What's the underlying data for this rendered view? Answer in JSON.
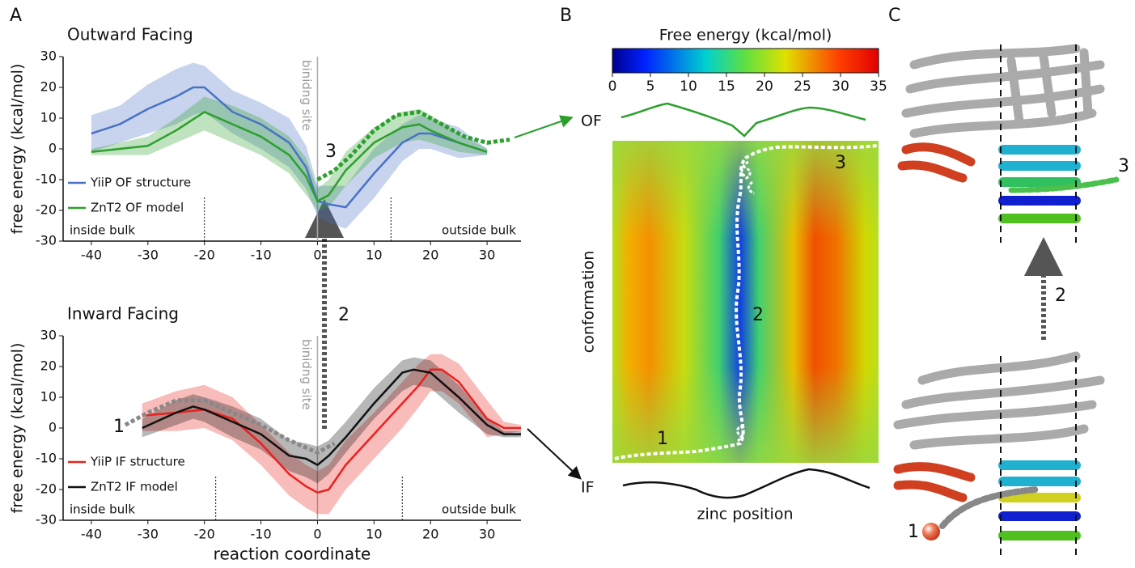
{
  "panel_labels": [
    "A",
    "B",
    "C"
  ],
  "chart_data": [
    {
      "type": "line",
      "title": "Outward Facing",
      "y_label": "free energy (kcal/mol)",
      "xlim": [
        -45,
        36
      ],
      "ylim": [
        -30,
        30
      ],
      "xticks": [
        -40,
        -30,
        -20,
        -10,
        0,
        10,
        20,
        30
      ],
      "yticks": [
        -30,
        -20,
        -10,
        0,
        10,
        20,
        30
      ],
      "legend": "lower left",
      "site_label": "binidng site",
      "inside_label": "inside bulk",
      "outside_label": "outside bulk",
      "markers": [
        -20,
        13
      ],
      "annotations": [
        "3"
      ],
      "series": [
        {
          "name": "YiiP OF structure",
          "color": "#4a72c4",
          "x": [
            -40,
            -35,
            -30,
            -25,
            -22,
            -20,
            -15,
            -10,
            -5,
            -2,
            0,
            2,
            5,
            10,
            15,
            18,
            20,
            25,
            30
          ],
          "values": [
            5,
            8,
            13,
            17,
            20,
            20,
            12,
            8,
            2,
            -6,
            -17,
            -18,
            -19,
            -8,
            2,
            5,
            5,
            2,
            -1
          ],
          "lower": [
            -1,
            2,
            5,
            8,
            11,
            12,
            5,
            0,
            -6,
            -13,
            -22,
            -24,
            -26,
            -16,
            -4,
            0,
            0,
            -3,
            -2
          ],
          "upper": [
            11,
            14,
            21,
            26,
            28,
            27,
            19,
            15,
            10,
            1,
            -12,
            -12,
            -12,
            0,
            8,
            11,
            10,
            7,
            0
          ]
        },
        {
          "name": "ZnT2 OF model",
          "color": "#2ca02c",
          "x": [
            -40,
            -35,
            -30,
            -25,
            -20,
            -15,
            -10,
            -5,
            -2,
            0,
            2,
            5,
            10,
            15,
            18,
            20,
            25,
            30
          ],
          "values": [
            -1,
            0,
            1,
            6,
            12,
            8,
            4,
            -2,
            -9,
            -17,
            -15,
            -7,
            2,
            7,
            8,
            6,
            2,
            -1
          ],
          "lower": [
            -2,
            -2,
            -2,
            2,
            6,
            2,
            -2,
            -8,
            -15,
            -20,
            -19,
            -12,
            -3,
            2,
            3,
            2,
            -1,
            -2
          ],
          "upper": [
            0,
            2,
            4,
            10,
            17,
            14,
            10,
            4,
            -3,
            -13,
            -10,
            -1,
            7,
            12,
            13,
            11,
            5,
            0
          ]
        },
        {
          "color": "#2ca02c",
          "dash": true,
          "x": [
            0,
            3,
            6,
            10,
            14,
            18,
            22,
            26,
            30,
            34
          ],
          "values": [
            -10,
            -7,
            -2,
            6,
            11,
            12,
            8,
            4,
            2,
            3
          ]
        }
      ]
    },
    {
      "type": "line",
      "title": "Inward Facing",
      "y_label": "free energy (kcal/mol)",
      "x_label": "reaction coordinate",
      "xlim": [
        -45,
        36
      ],
      "ylim": [
        -30,
        30
      ],
      "xticks": [
        -40,
        -30,
        -20,
        -10,
        0,
        10,
        20,
        30
      ],
      "yticks": [
        -30,
        -20,
        -10,
        0,
        10,
        20,
        30
      ],
      "legend": "lower left",
      "site_label": "binidng site",
      "inside_label": "inside bulk",
      "outside_label": "outside bulk",
      "markers": [
        -18,
        15
      ],
      "annotations": [
        "1",
        "2"
      ],
      "series": [
        {
          "name": "YiiP IF structure",
          "color": "#e8221e",
          "x": [
            -31,
            -25,
            -20,
            -15,
            -10,
            -5,
            -2,
            0,
            2,
            5,
            10,
            15,
            18,
            20,
            22,
            25,
            30,
            33,
            36
          ],
          "values": [
            4,
            5,
            6,
            3,
            -5,
            -15,
            -19,
            -21,
            -20,
            -12,
            -2,
            8,
            14,
            19,
            19,
            15,
            3,
            0,
            0
          ],
          "lower": [
            -1,
            -1,
            0,
            -4,
            -12,
            -22,
            -26,
            -28,
            -28,
            -20,
            -10,
            0,
            7,
            12,
            12,
            8,
            -3,
            -2,
            -1
          ],
          "upper": [
            8,
            12,
            14,
            10,
            1,
            -8,
            -12,
            -14,
            -12,
            -4,
            5,
            15,
            21,
            24,
            24,
            21,
            9,
            2,
            1
          ]
        },
        {
          "name": "ZnT2 IF model",
          "color": "#111111",
          "x": [
            -31,
            -25,
            -22,
            -20,
            -15,
            -10,
            -5,
            -2,
            0,
            2,
            5,
            10,
            15,
            17,
            20,
            25,
            30,
            33,
            36
          ],
          "values": [
            0,
            5,
            7,
            6,
            2,
            -2,
            -9,
            -10,
            -12,
            -9,
            -3,
            8,
            18,
            19,
            18,
            10,
            1,
            -2,
            -2
          ],
          "lower": [
            -3,
            1,
            3,
            2,
            -3,
            -7,
            -14,
            -16,
            -18,
            -15,
            -8,
            3,
            12,
            14,
            13,
            5,
            -2,
            -3,
            -3
          ],
          "upper": [
            3,
            9,
            11,
            10,
            7,
            3,
            -4,
            -5,
            -6,
            -4,
            2,
            13,
            22,
            23,
            22,
            14,
            3,
            -1,
            -1
          ]
        },
        {
          "color": "#888888",
          "dash": true,
          "x": [
            -34,
            -30,
            -25,
            -20,
            -15,
            -10,
            -5,
            0,
            3
          ],
          "values": [
            1,
            5,
            9,
            9,
            5,
            1,
            -4,
            -8,
            -5
          ]
        }
      ]
    },
    {
      "type": "colorbar",
      "title": "Free energy (kcal/mol)",
      "xlim": [
        0,
        35
      ],
      "xticks": [
        0,
        5,
        10,
        15,
        20,
        25,
        30,
        35
      ]
    }
  ],
  "heatmap": {
    "top_label": "OF",
    "bottom_label": "IF",
    "y_label": "conformation",
    "x_label": "zinc position",
    "path_labels": [
      "1",
      "2",
      "3"
    ]
  },
  "structures": {
    "labels": [
      "3",
      "2",
      "1"
    ]
  }
}
